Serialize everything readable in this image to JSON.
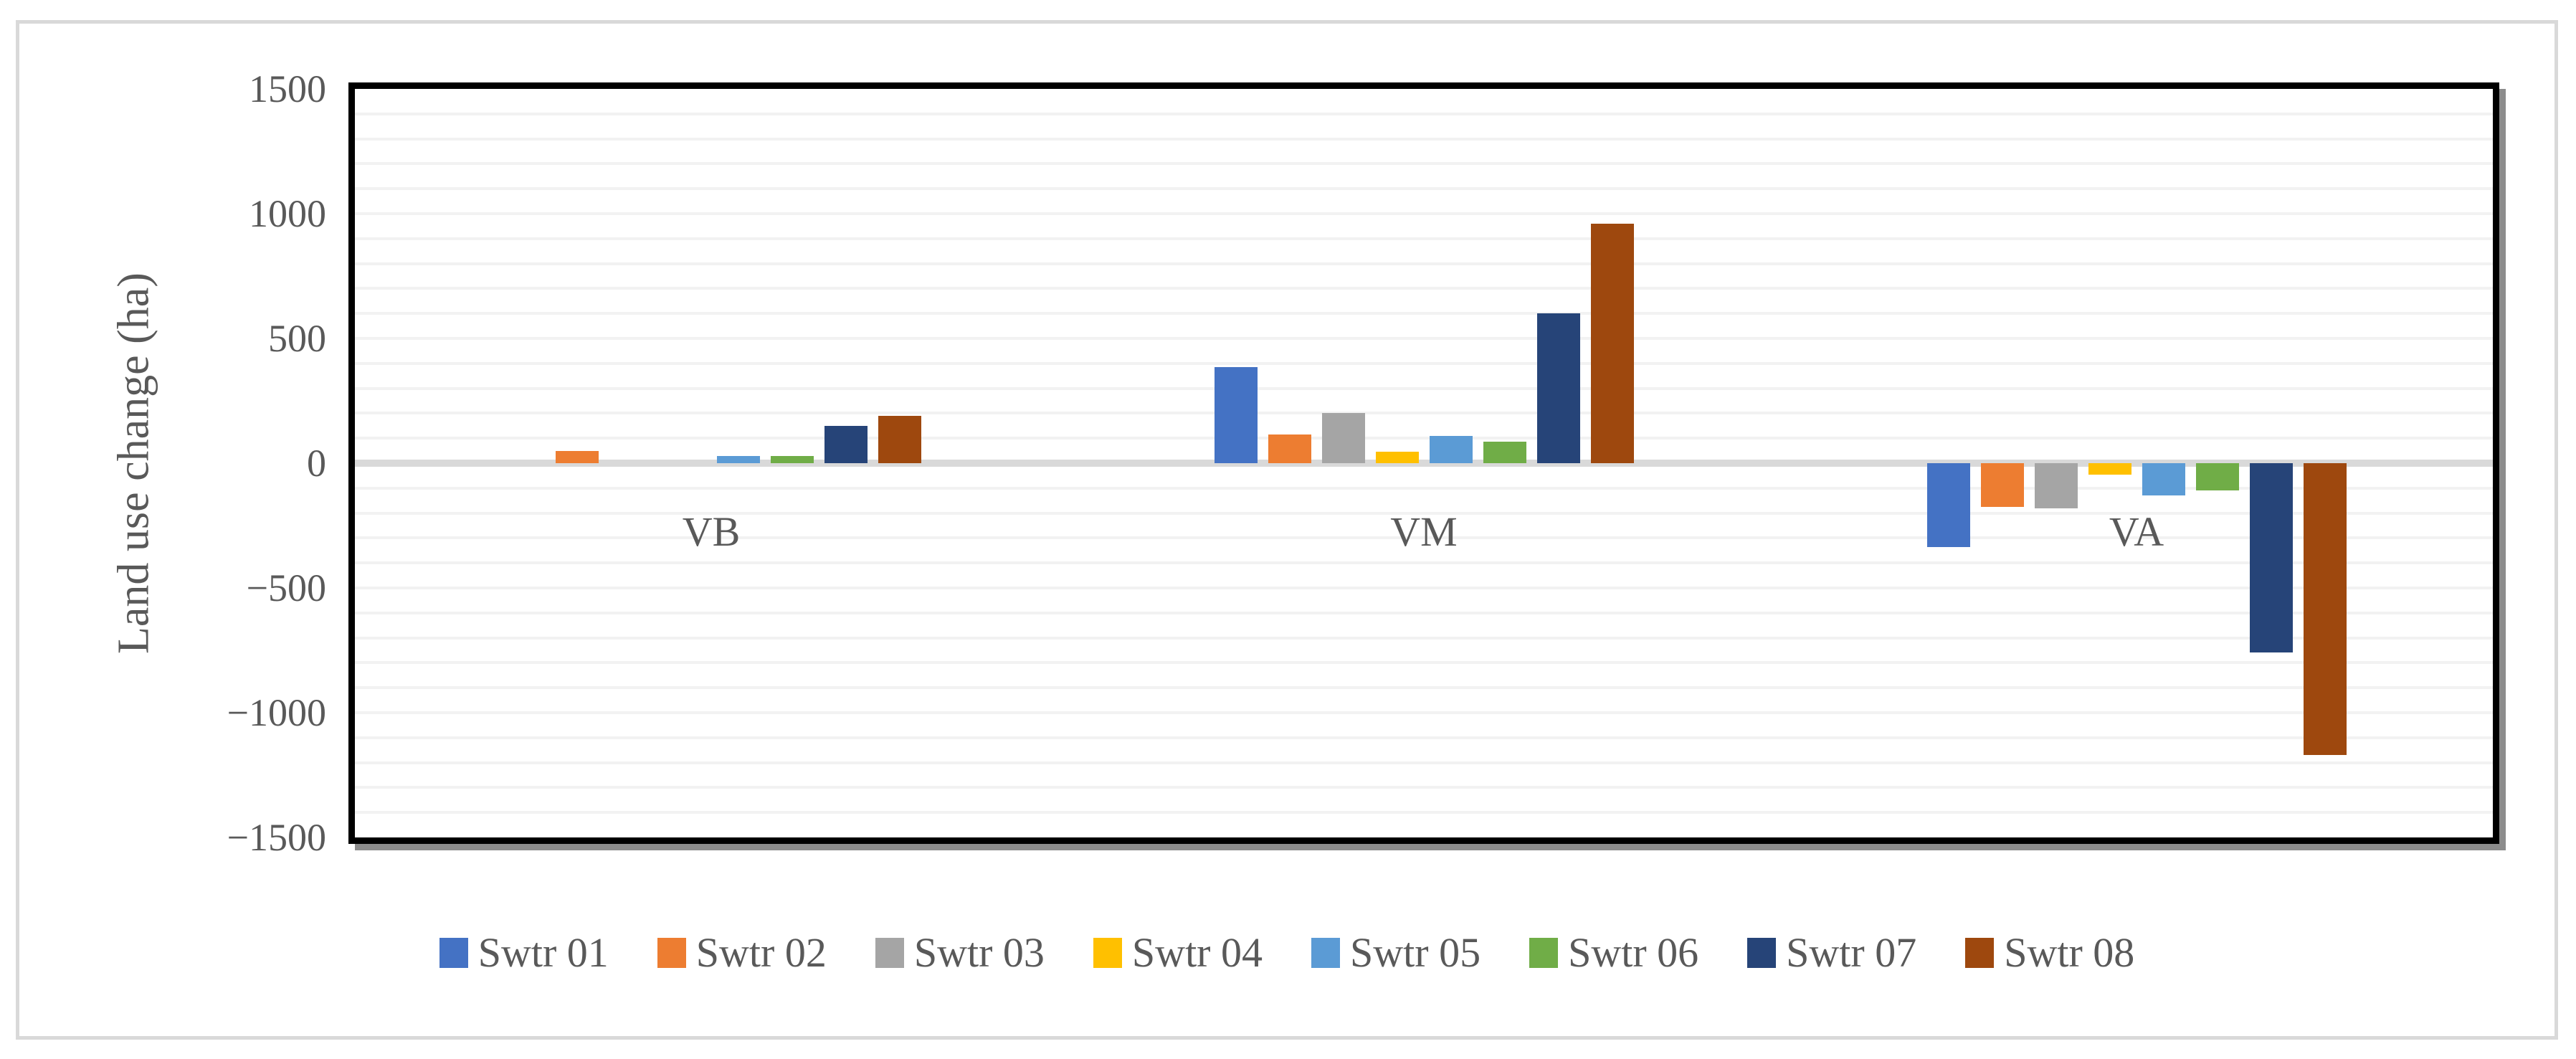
{
  "figure": {
    "frame_border_color": "#d9d9d9",
    "plot_border_color": "#000000",
    "background_color": "#ffffff",
    "text_color": "#595959",
    "gridline_color": "#f2f2f2",
    "zero_line_color": "#d9d9d9"
  },
  "chart_data": {
    "type": "bar",
    "title": "",
    "xlabel": "",
    "ylabel": "Land use change (ha)",
    "categories": [
      "VB",
      "VM",
      "VA"
    ],
    "series": [
      {
        "name": "Swtr 01",
        "color": "#4472C4",
        "values": [
          0,
          385,
          -335
        ]
      },
      {
        "name": "Swtr 02",
        "color": "#ED7D31",
        "values": [
          50,
          115,
          -175
        ]
      },
      {
        "name": "Swtr 03",
        "color": "#A5A5A5",
        "values": [
          0,
          200,
          -180
        ]
      },
      {
        "name": "Swtr 04",
        "color": "#FFC000",
        "values": [
          0,
          45,
          -45
        ]
      },
      {
        "name": "Swtr 05",
        "color": "#5B9BD5",
        "values": [
          30,
          110,
          -130
        ]
      },
      {
        "name": "Swtr 06",
        "color": "#70AD47",
        "values": [
          28,
          85,
          -110
        ]
      },
      {
        "name": "Swtr 07",
        "color": "#264478",
        "values": [
          150,
          600,
          -760
        ]
      },
      {
        "name": "Swtr 08",
        "color": "#9E480E",
        "values": [
          190,
          960,
          -1170
        ]
      }
    ],
    "ylim": [
      -1500,
      1500
    ],
    "ytick_step": 500,
    "minor_gridline_step": 100,
    "grid": true,
    "legend_position": "bottom",
    "y_ticks": [
      {
        "value": 1500,
        "label": "1500"
      },
      {
        "value": 1000,
        "label": "1000"
      },
      {
        "value": 500,
        "label": "500"
      },
      {
        "value": 0,
        "label": "0"
      },
      {
        "value": -500,
        "label": "−500"
      },
      {
        "value": -1000,
        "label": "−1000"
      },
      {
        "value": -1500,
        "label": "−1500"
      }
    ]
  }
}
